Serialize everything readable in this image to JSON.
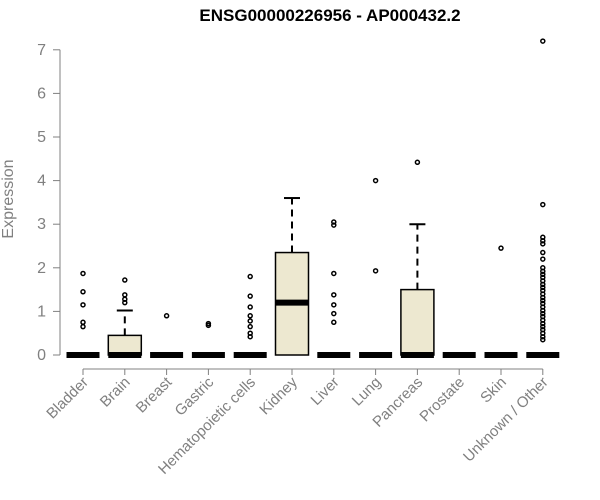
{
  "chart_data": {
    "type": "box",
    "title": "ENSG00000226956 - AP000432.2",
    "ylabel": "Expression",
    "xlabel": "",
    "ylim": [
      0,
      7
    ],
    "yticks": [
      0,
      1,
      2,
      3,
      4,
      5,
      6,
      7
    ],
    "grid": false,
    "box_fill": "#ede8d0",
    "categories": [
      "Bladder",
      "Brain",
      "Breast",
      "Gastric",
      "Hematopoietic cells",
      "Kidney",
      "Liver",
      "Lung",
      "Pancreas",
      "Prostate",
      "Skin",
      "Unknown / Other"
    ],
    "boxes": [
      {
        "q1": 0,
        "median": 0,
        "q3": 0,
        "whisker_low": 0,
        "whisker_high": 0,
        "outliers": [
          0.65,
          0.75,
          1.15,
          1.45,
          1.87
        ]
      },
      {
        "q1": 0,
        "median": 0,
        "q3": 0.45,
        "whisker_low": 0,
        "whisker_high": 1.02,
        "outliers": [
          1.2,
          1.28,
          1.38,
          1.72
        ]
      },
      {
        "q1": 0,
        "median": 0,
        "q3": 0,
        "whisker_low": 0,
        "whisker_high": 0,
        "outliers": [
          0.9
        ]
      },
      {
        "q1": 0,
        "median": 0,
        "q3": 0,
        "whisker_low": 0,
        "whisker_high": 0,
        "outliers": [
          0.68,
          0.72
        ]
      },
      {
        "q1": 0,
        "median": 0,
        "q3": 0,
        "whisker_low": 0,
        "whisker_high": 0,
        "outliers": [
          0.42,
          0.5,
          0.65,
          0.78,
          0.9,
          1.1,
          1.35,
          1.8
        ]
      },
      {
        "q1": 0,
        "median": 1.2,
        "q3": 2.35,
        "whisker_low": 0,
        "whisker_high": 3.6,
        "outliers": []
      },
      {
        "q1": 0,
        "median": 0,
        "q3": 0,
        "whisker_low": 0,
        "whisker_high": 0,
        "outliers": [
          0.75,
          0.95,
          1.15,
          1.38,
          1.87,
          2.98,
          3.05
        ]
      },
      {
        "q1": 0,
        "median": 0,
        "q3": 0,
        "whisker_low": 0,
        "whisker_high": 0,
        "outliers": [
          1.93,
          4.0
        ]
      },
      {
        "q1": 0,
        "median": 0,
        "q3": 1.5,
        "whisker_low": 0,
        "whisker_high": 3.0,
        "outliers": [
          4.42
        ]
      },
      {
        "q1": 0,
        "median": 0,
        "q3": 0,
        "whisker_low": 0,
        "whisker_high": 0,
        "outliers": []
      },
      {
        "q1": 0,
        "median": 0,
        "q3": 0,
        "whisker_low": 0,
        "whisker_high": 0,
        "outliers": [
          2.45
        ]
      },
      {
        "q1": 0,
        "median": 0,
        "q3": 0,
        "whisker_low": 0,
        "whisker_high": 0,
        "outliers": [
          0.35,
          0.42,
          0.5,
          0.58,
          0.65,
          0.72,
          0.8,
          0.88,
          0.95,
          1.02,
          1.1,
          1.18,
          1.25,
          1.32,
          1.4,
          1.48,
          1.55,
          1.62,
          1.7,
          1.78,
          1.85,
          1.92,
          2.0,
          2.2,
          2.35,
          2.55,
          2.62,
          2.7,
          3.45,
          7.2
        ]
      }
    ]
  }
}
